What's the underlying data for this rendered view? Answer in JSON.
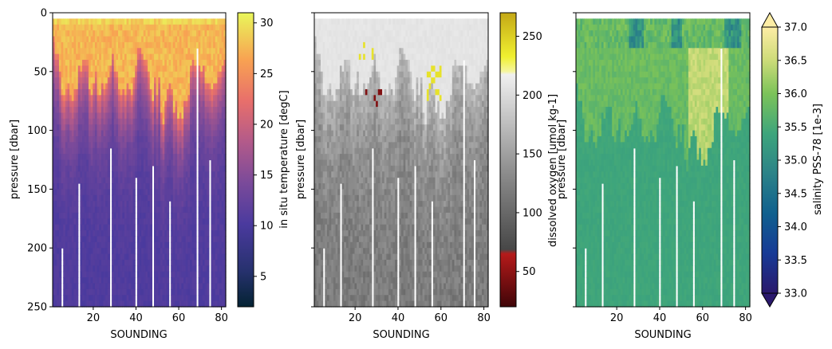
{
  "chart_data": [
    {
      "type": "heatmap",
      "variable": "temperature",
      "title": "",
      "xlabel": "SOUNDING",
      "ylabel": "pressure [dbar]",
      "xlim": [
        1,
        82
      ],
      "ylim": [
        250,
        0
      ],
      "xticks": [
        "20",
        "40",
        "60",
        "80"
      ],
      "yticks": [
        "0",
        "50",
        "100",
        "150",
        "200",
        "250"
      ],
      "colorbar": {
        "label": "in situ temperature [degC]",
        "range": [
          2,
          31
        ],
        "ticks": [
          "5",
          "10",
          "15",
          "20",
          "25",
          "30"
        ],
        "colormap": "thermal",
        "extend": "none"
      },
      "surface_value": 27.5,
      "deep_value": 10.5,
      "missing_columns": [
        {
          "sounding": 5,
          "from": 202
        },
        {
          "sounding": 13,
          "from": 146
        },
        {
          "sounding": 28,
          "from": 113
        },
        {
          "sounding": 40,
          "from": 140
        },
        {
          "sounding": 48,
          "from": 130
        },
        {
          "sounding": 56,
          "from": 161
        },
        {
          "sounding": 69,
          "from": 32
        },
        {
          "sounding": 75,
          "from": 125
        }
      ]
    },
    {
      "type": "heatmap",
      "variable": "oxygen",
      "title": "",
      "xlabel": "SOUNDING",
      "ylabel": "pressure [dbar]",
      "xlim": [
        1,
        82
      ],
      "ylim": [
        250,
        0
      ],
      "xticks": [
        "20",
        "40",
        "60",
        "80"
      ],
      "yticks": [],
      "colorbar": {
        "label": "dissolved oxygen [umol kg-1]",
        "range": [
          20,
          270
        ],
        "ticks": [
          "50",
          "100",
          "150",
          "200",
          "250"
        ],
        "colormap": "oxygen",
        "extend": "none"
      },
      "surface_value": 208,
      "deep_value": 115,
      "missing_columns": [
        {
          "sounding": 5,
          "from": 201
        },
        {
          "sounding": 13,
          "from": 146
        },
        {
          "sounding": 28,
          "from": 113
        },
        {
          "sounding": 40,
          "from": 140
        },
        {
          "sounding": 48,
          "from": 130
        },
        {
          "sounding": 56,
          "from": 160
        },
        {
          "sounding": 71,
          "from": 39
        },
        {
          "sounding": 76,
          "from": 125
        }
      ]
    },
    {
      "type": "heatmap",
      "variable": "salinity",
      "title": "",
      "xlabel": "SOUNDING",
      "ylabel": "pressure [dbar]",
      "xlim": [
        1,
        82
      ],
      "ylim": [
        250,
        0
      ],
      "xticks": [
        "20",
        "40",
        "60",
        "80"
      ],
      "yticks": [],
      "colorbar": {
        "label": "salinity PSS-78 [1e-3]",
        "range": [
          33.0,
          37.0
        ],
        "ticks": [
          "33.0",
          "33.5",
          "34.0",
          "34.5",
          "35.0",
          "35.5",
          "36.0",
          "36.5",
          "37.0"
        ],
        "colormap": "haline",
        "extend": "both"
      },
      "surface_value": 35.9,
      "deep_value": 35.4,
      "missing_columns": [
        {
          "sounding": 5,
          "from": 202
        },
        {
          "sounding": 13,
          "from": 146
        },
        {
          "sounding": 28,
          "from": 113
        },
        {
          "sounding": 40,
          "from": 140
        },
        {
          "sounding": 48,
          "from": 130
        },
        {
          "sounding": 56,
          "from": 161
        },
        {
          "sounding": 69,
          "from": 32
        },
        {
          "sounding": 75,
          "from": 125
        }
      ]
    }
  ]
}
